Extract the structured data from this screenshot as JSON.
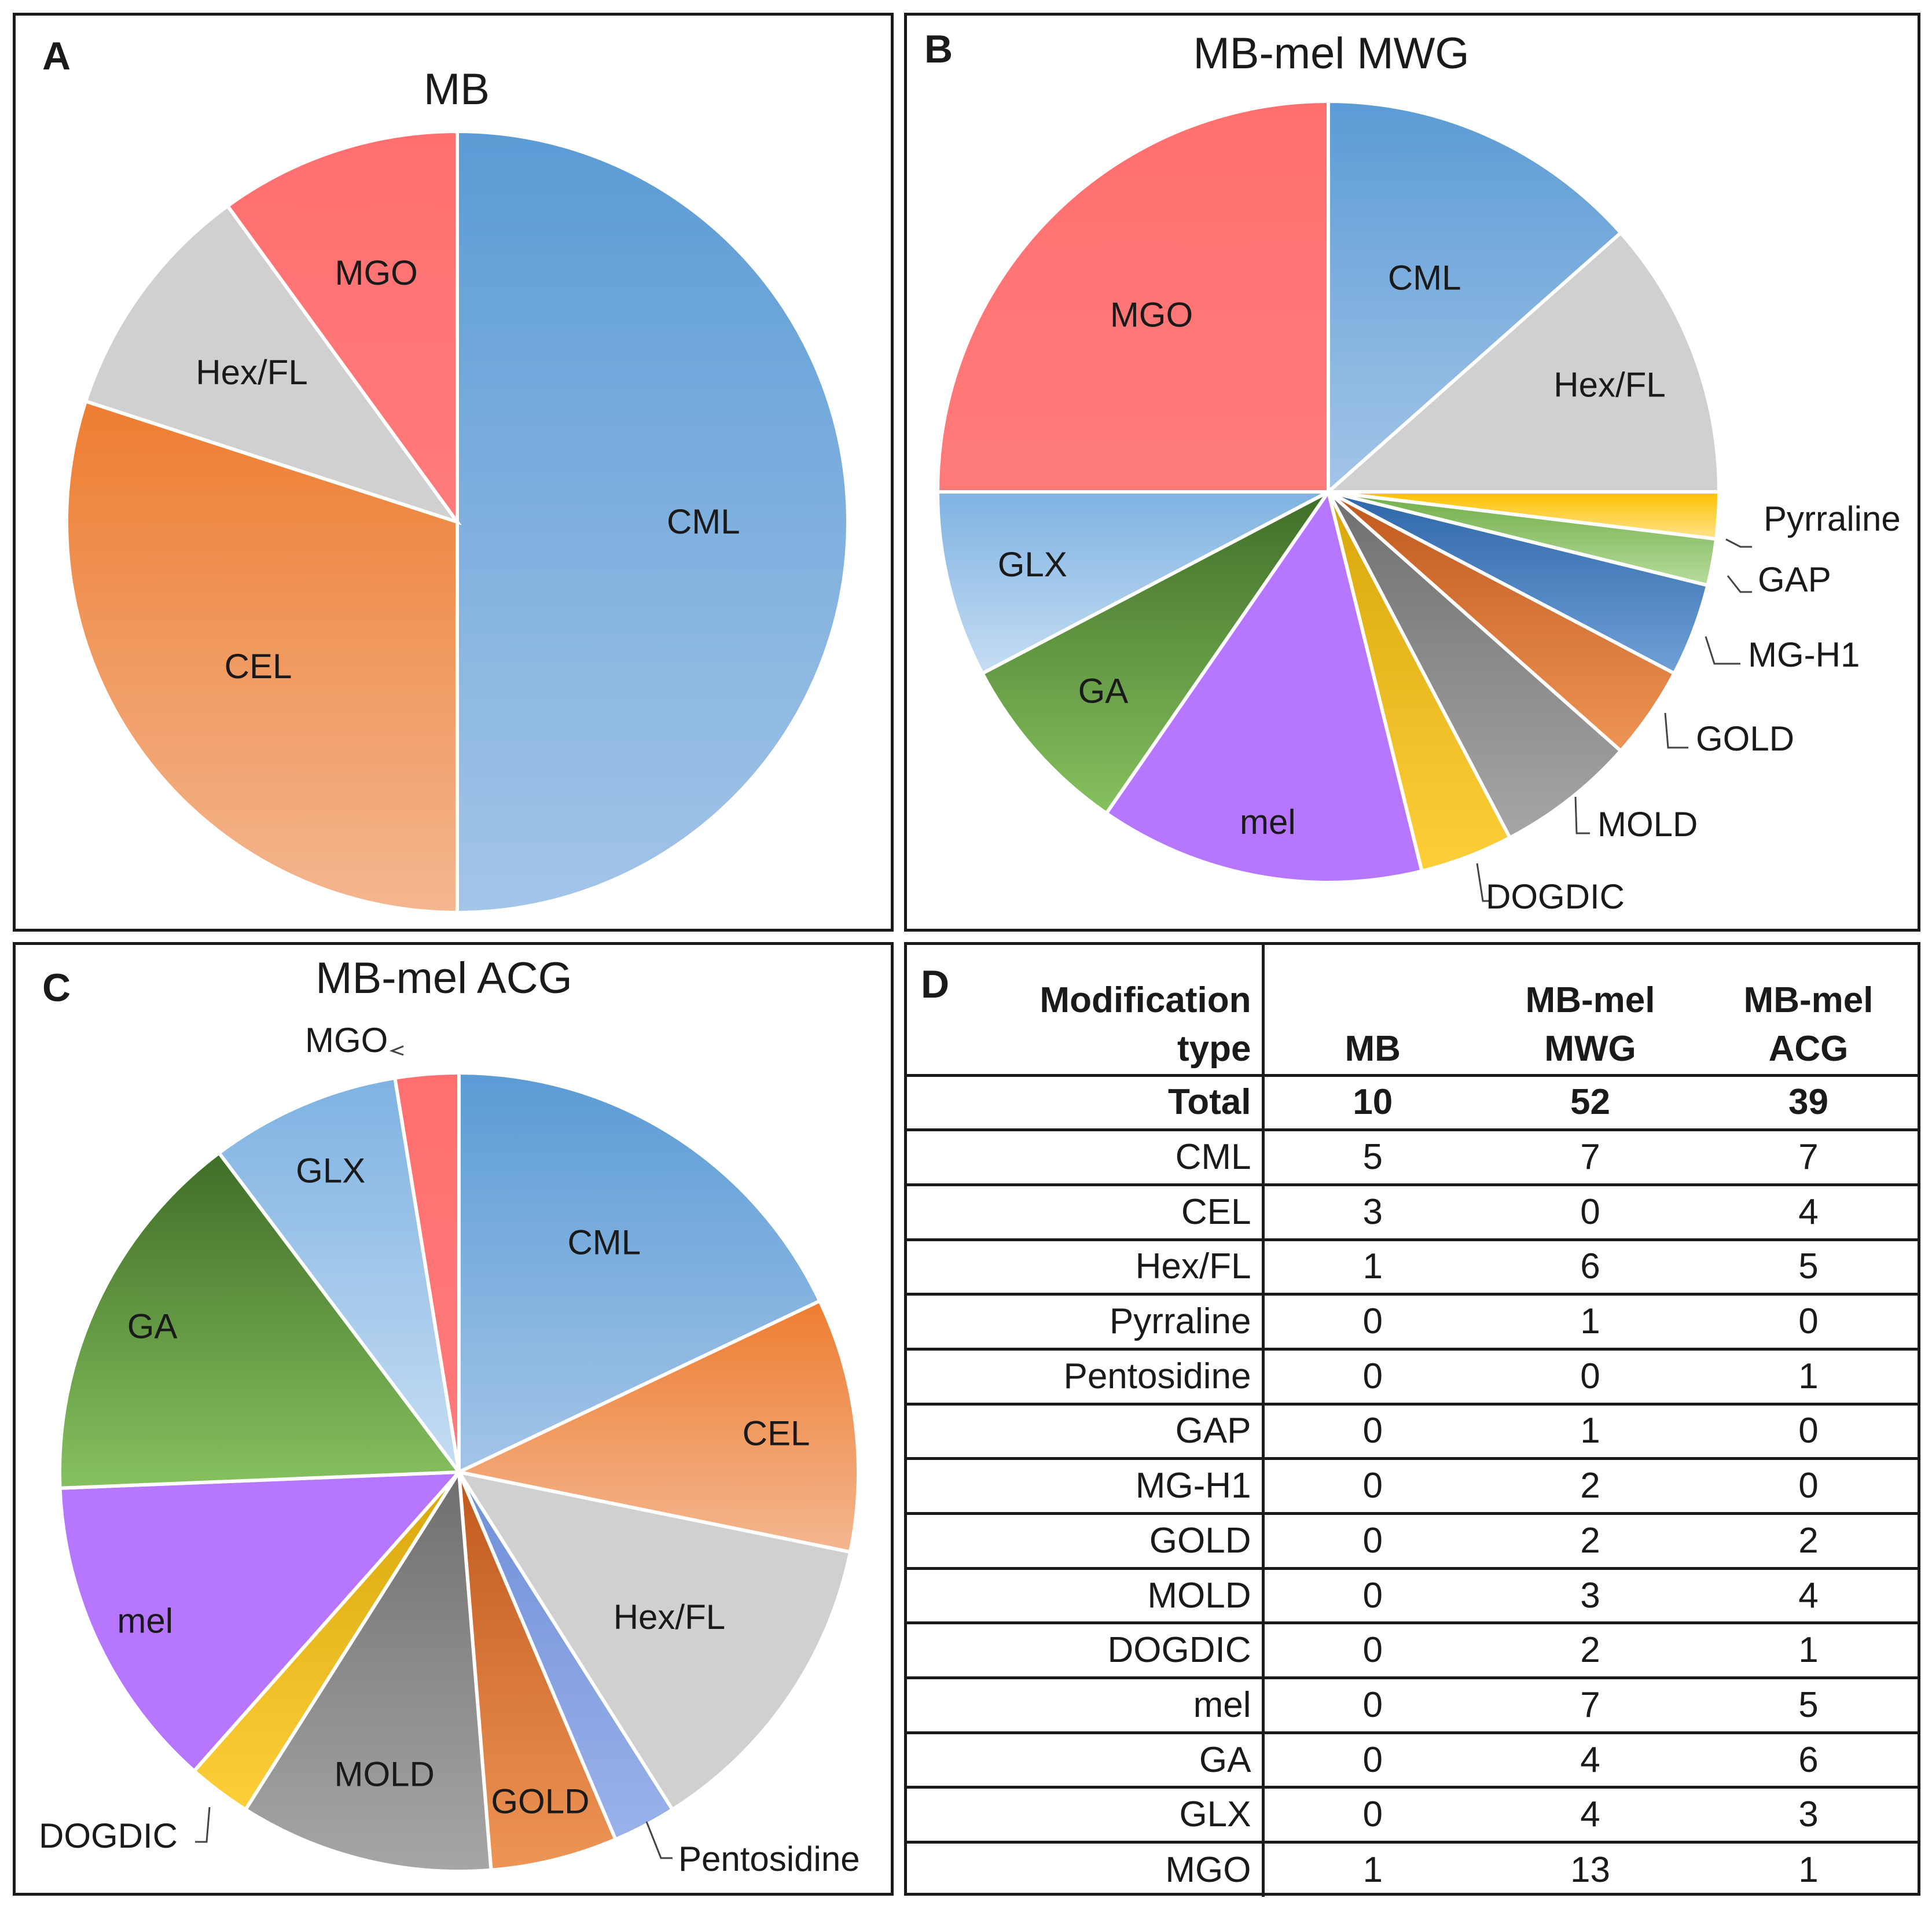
{
  "panels": {
    "a": {
      "letter": "A"
    },
    "b": {
      "letter": "B"
    },
    "c": {
      "letter": "C"
    },
    "d": {
      "letter": "D"
    }
  },
  "chart_data": [
    {
      "type": "pie",
      "title": "MB",
      "slices": [
        {
          "label": "CML",
          "value": 5,
          "color": "#5b9bd5",
          "color_light": "#a3c5e8"
        },
        {
          "label": "CEL",
          "value": 3,
          "color": "#ed7d31",
          "color_light": "#f4b68f"
        },
        {
          "label": "Hex/FL",
          "value": 1,
          "color": "#d0d0d0",
          "color_light": "#d0d0d0"
        },
        {
          "label": "MGO",
          "value": 1,
          "color": "#ff6f6f",
          "color_light": "#ff7b7b"
        }
      ]
    },
    {
      "type": "pie",
      "title": "MB-mel MWG",
      "slices": [
        {
          "label": "CML",
          "value": 7,
          "color": "#5b9bd5",
          "color_light": "#a3c5e8"
        },
        {
          "label": "Hex/FL",
          "value": 6,
          "color": "#d0d0d0",
          "color_light": "#d0d0d0"
        },
        {
          "label": "Pyrraline",
          "value": 1,
          "color": "#ffc000",
          "color_light": "#ffe38a"
        },
        {
          "label": "GAP",
          "value": 1,
          "color": "#70ad47",
          "color_light": "#b7dc9c"
        },
        {
          "label": "MG-H1",
          "value": 2,
          "color": "#2e66a8",
          "color_light": "#6fa0d8"
        },
        {
          "label": "GOLD",
          "value": 2,
          "color": "#c0581d",
          "color_light": "#ee9556"
        },
        {
          "label": "MOLD",
          "value": 3,
          "color": "#6f6f6f",
          "color_light": "#a6a6a6"
        },
        {
          "label": "DOGDIC",
          "value": 2,
          "color": "#d6a60a",
          "color_light": "#ffcf3a"
        },
        {
          "label": "mel",
          "value": 7,
          "color": "#b676ff",
          "color_light": "#b676ff"
        },
        {
          "label": "GA",
          "value": 4,
          "color": "#3f6e27",
          "color_light": "#86c15f"
        },
        {
          "label": "GLX",
          "value": 4,
          "color": "#7eb2e2",
          "color_light": "#c6ddf3"
        },
        {
          "label": "MGO",
          "value": 13,
          "color": "#ff6f6f",
          "color_light": "#ff7b7b"
        }
      ]
    },
    {
      "type": "pie",
      "title": "MB-mel ACG",
      "slices": [
        {
          "label": "CML",
          "value": 7,
          "color": "#5b9bd5",
          "color_light": "#a3c5e8"
        },
        {
          "label": "CEL",
          "value": 4,
          "color": "#ed7d31",
          "color_light": "#f4b68f"
        },
        {
          "label": "Hex/FL",
          "value": 5,
          "color": "#d0d0d0",
          "color_light": "#d0d0d0"
        },
        {
          "label": "Pentosidine",
          "value": 1,
          "color": "#6f8fd8",
          "color_light": "#9ab2ea"
        },
        {
          "label": "GOLD",
          "value": 2,
          "color": "#c0581d",
          "color_light": "#ee9556"
        },
        {
          "label": "MOLD",
          "value": 4,
          "color": "#6f6f6f",
          "color_light": "#a6a6a6"
        },
        {
          "label": "DOGDIC",
          "value": 1,
          "color": "#d6a60a",
          "color_light": "#ffcf3a"
        },
        {
          "label": "mel",
          "value": 5,
          "color": "#b676ff",
          "color_light": "#b676ff"
        },
        {
          "label": "GA",
          "value": 6,
          "color": "#3f6e27",
          "color_light": "#86c15f"
        },
        {
          "label": "GLX",
          "value": 3,
          "color": "#7eb2e2",
          "color_light": "#c6ddf3"
        },
        {
          "label": "MGO",
          "value": 1,
          "color": "#ff6f6f",
          "color_light": "#ff7b7b"
        }
      ]
    },
    {
      "type": "table",
      "header": {
        "col1": [
          "Modification",
          "type"
        ],
        "col2": [
          "MB"
        ],
        "col3": [
          "MB-mel",
          "MWG"
        ],
        "col4": [
          "MB-mel",
          "ACG"
        ]
      },
      "rows": [
        {
          "name": "Total",
          "mb": "10",
          "mwg": "52",
          "acg": "39",
          "total": true
        },
        {
          "name": "CML",
          "mb": "5",
          "mwg": "7",
          "acg": "7"
        },
        {
          "name": "CEL",
          "mb": "3",
          "mwg": "0",
          "acg": "4"
        },
        {
          "name": "Hex/FL",
          "mb": "1",
          "mwg": "6",
          "acg": "5"
        },
        {
          "name": "Pyrraline",
          "mb": "0",
          "mwg": "1",
          "acg": "0"
        },
        {
          "name": "Pentosidine",
          "mb": "0",
          "mwg": "0",
          "acg": "1"
        },
        {
          "name": "GAP",
          "mb": "0",
          "mwg": "1",
          "acg": "0"
        },
        {
          "name": "MG-H1",
          "mb": "0",
          "mwg": "2",
          "acg": "0"
        },
        {
          "name": "GOLD",
          "mb": "0",
          "mwg": "2",
          "acg": "2"
        },
        {
          "name": "MOLD",
          "mb": "0",
          "mwg": "3",
          "acg": "4"
        },
        {
          "name": "DOGDIC",
          "mb": "0",
          "mwg": "2",
          "acg": "1"
        },
        {
          "name": "mel",
          "mb": "0",
          "mwg": "7",
          "acg": "5"
        },
        {
          "name": "GA",
          "mb": "0",
          "mwg": "4",
          "acg": "6"
        },
        {
          "name": "GLX",
          "mb": "0",
          "mwg": "4",
          "acg": "3"
        },
        {
          "name": "MGO",
          "mb": "1",
          "mwg": "13",
          "acg": "1"
        }
      ]
    }
  ]
}
